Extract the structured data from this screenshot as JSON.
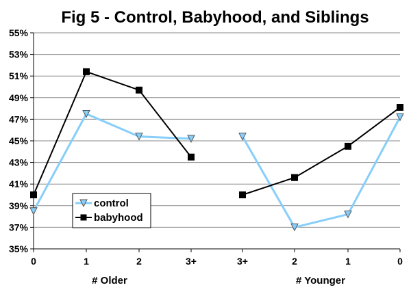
{
  "chart_data": {
    "type": "line",
    "title": "Fig 5 - Control, Babyhood, and Siblings",
    "ylim": [
      35,
      55
    ],
    "y_ticks": [
      "35%",
      "37%",
      "39%",
      "41%",
      "43%",
      "45%",
      "47%",
      "49%",
      "51%",
      "53%",
      "55%"
    ],
    "grid": "horizontal",
    "legend_position": "bottom-left",
    "groups": [
      {
        "xlabel": "# Older",
        "categories": [
          "0",
          "1",
          "2",
          "3+"
        ],
        "series": [
          {
            "name": "control",
            "values": [
              38.5,
              47.5,
              45.4,
              45.2
            ],
            "color": "#87CEFA",
            "marker": "triangle-down"
          },
          {
            "name": "babyhood",
            "values": [
              40.0,
              51.4,
              49.7,
              43.5
            ],
            "color": "#000000",
            "marker": "square"
          }
        ]
      },
      {
        "xlabel": "# Younger",
        "categories": [
          "3+",
          "2",
          "1",
          "0"
        ],
        "series": [
          {
            "name": "control",
            "values": [
              45.4,
              37.0,
              38.2,
              47.2
            ],
            "color": "#87CEFA",
            "marker": "triangle-down"
          },
          {
            "name": "babyhood",
            "values": [
              40.0,
              41.6,
              44.5,
              48.1
            ],
            "color": "#000000",
            "marker": "square"
          }
        ]
      }
    ],
    "legend": [
      "control",
      "babyhood"
    ]
  }
}
